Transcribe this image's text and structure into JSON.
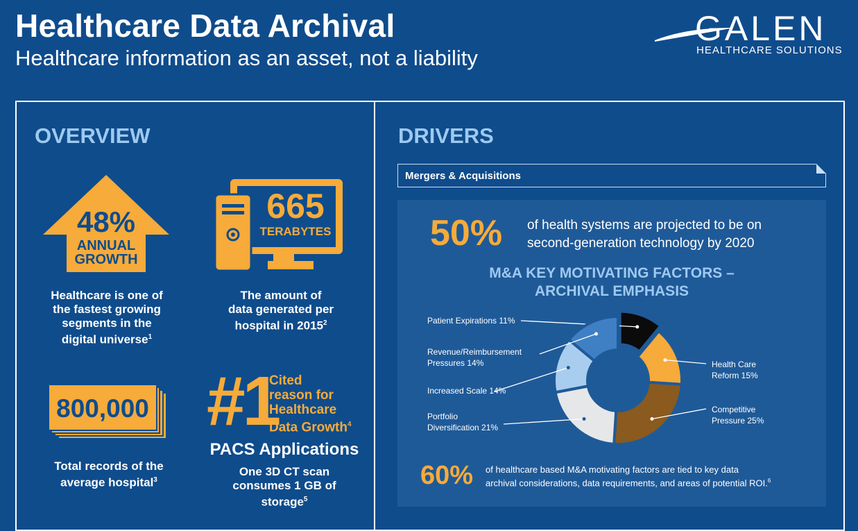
{
  "header": {
    "title": "Healthcare Data Archival",
    "subtitle": "Healthcare information as an asset, not a liability",
    "logo_word": "GALEN",
    "logo_sub": "HEALTHCARE SOLUTIONS"
  },
  "overview": {
    "heading": "OVERVIEW",
    "growth": {
      "pct": "48%",
      "l1": "ANNUAL",
      "l2": "GROWTH",
      "text": [
        "Healthcare is one of",
        "the fastest growing",
        "segments in the",
        "digital universe"
      ],
      "sup": "1"
    },
    "terabytes": {
      "num": "665",
      "unit": "TERABYTES",
      "text": [
        "The amount of",
        "data generated per",
        "hospital in 2015"
      ],
      "sup": "2"
    },
    "records": {
      "num": "800,000",
      "text": [
        "Total records of the",
        "average hospital"
      ],
      "sup": "3"
    },
    "cited": {
      "num": "#1",
      "text": [
        "Cited",
        "reason for",
        "Healthcare",
        "Data Growth"
      ],
      "sup": "4",
      "pacs": "PACS Applications",
      "ct": [
        "One 3D CT scan",
        "consumes 1 GB of",
        "storage"
      ],
      "ct_sup": "5"
    }
  },
  "drivers": {
    "heading": "DRIVERS",
    "tab": "Mergers & Acquisitions",
    "stat1": {
      "pct": "50%",
      "text": [
        "of health systems are projected to be on",
        "second-generation technology by 2020"
      ]
    },
    "chart_title": [
      "M&A KEY MOTIVATING FACTORS –",
      "ARCHIVAL EMPHASIS"
    ],
    "stat2": {
      "pct": "60%",
      "text": [
        "of healthcare based M&A motivating factors are tied to key data",
        "archival considerations, data requirements, and areas of potential ROI."
      ],
      "sup": "6"
    }
  },
  "colors": {
    "background": "#0f4c8c",
    "accent": "#f6ab3a",
    "heading": "#9ec9f0",
    "panel": "#1f5a98"
  },
  "chart_data": {
    "type": "pie",
    "title": "M&A KEY MOTIVATING FACTORS – ARCHIVAL EMPHASIS",
    "labels": [
      "Patient Expirations",
      "Health Care Reform",
      "Competitive Pressure",
      "Portfolio Diversification",
      "Increased Scale",
      "Revenue/Reimbursement Pressures"
    ],
    "label_text": [
      [
        "Patient Expirations 11%"
      ],
      [
        "Health Care",
        "Reform 15%"
      ],
      [
        "Competitive",
        "Pressure 25%"
      ],
      [
        "Portfolio",
        "Diversification 21%"
      ],
      [
        "Increased Scale 14%"
      ],
      [
        "Revenue/Reimbursement",
        "Pressures 14%"
      ]
    ],
    "values": [
      11,
      15,
      25,
      21,
      14,
      14
    ],
    "colors": [
      "#0b0b0b",
      "#f6ab3a",
      "#8a5a1e",
      "#e6e7e9",
      "#a9cdee",
      "#3f80c4"
    ],
    "donut": true
  }
}
